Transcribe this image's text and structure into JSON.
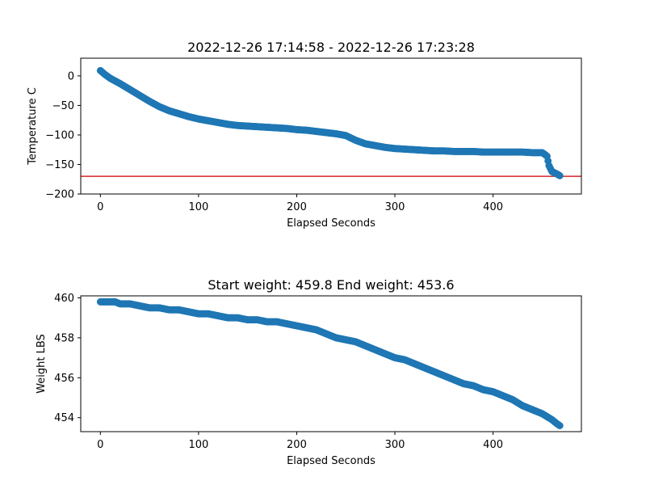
{
  "chart_data": [
    {
      "type": "scatter",
      "title": "2022-12-26 17:14:58 - 2022-12-26 17:23:28",
      "xlabel": "Elapsed Seconds",
      "ylabel": "Temperature C",
      "xlim": [
        -20,
        490
      ],
      "ylim": [
        -200,
        30
      ],
      "xticks": [
        0,
        100,
        200,
        300,
        400
      ],
      "xtick_labels": [
        "0",
        "100",
        "200",
        "300",
        "400"
      ],
      "yticks": [
        0,
        -50,
        -100,
        -150,
        -200
      ],
      "ytick_labels": [
        "0",
        "−50",
        "−100",
        "−150",
        "−200"
      ],
      "grid": false,
      "marker_color": "#1f77b4",
      "reference_line": {
        "y": -170,
        "color": "#d62728"
      },
      "series": [
        {
          "x": [
            0,
            5,
            10,
            20,
            30,
            40,
            50,
            60,
            70,
            80,
            90,
            100,
            110,
            120,
            130,
            140,
            150,
            160,
            170,
            180,
            190,
            200,
            210,
            220,
            230,
            240,
            250,
            260,
            270,
            280,
            290,
            300,
            310,
            320,
            330,
            340,
            350,
            360,
            370,
            380,
            390,
            400,
            410,
            420,
            430,
            440,
            450,
            452,
            455,
            457,
            460,
            465,
            468
          ],
          "y": [
            9,
            2,
            -4,
            -13,
            -23,
            -33,
            -43,
            -52,
            -59,
            -64,
            -69,
            -73,
            -76,
            -79,
            -82,
            -84,
            -85,
            -86,
            -87,
            -88,
            -89,
            -91,
            -92,
            -94,
            -96,
            -98,
            -101,
            -109,
            -115,
            -118,
            -121,
            -123,
            -124,
            -125,
            -126,
            -127,
            -127,
            -128,
            -128,
            -128,
            -129,
            -129,
            -129,
            -129,
            -129,
            -130,
            -130,
            -132,
            -136,
            -152,
            -162,
            -166,
            -169
          ]
        }
      ]
    },
    {
      "type": "scatter",
      "title": "Start weight: 459.8 End weight: 453.6",
      "xlabel": "Elapsed Seconds",
      "ylabel": "Weight LBS",
      "xlim": [
        -20,
        490
      ],
      "ylim": [
        453.3,
        460.1
      ],
      "xticks": [
        0,
        100,
        200,
        300,
        400
      ],
      "xtick_labels": [
        "0",
        "100",
        "200",
        "300",
        "400"
      ],
      "yticks": [
        454,
        456,
        458,
        460
      ],
      "ytick_labels": [
        "454",
        "456",
        "458",
        "460"
      ],
      "grid": false,
      "marker_color": "#1f77b4",
      "series": [
        {
          "x": [
            0,
            5,
            10,
            15,
            20,
            30,
            40,
            50,
            60,
            70,
            80,
            90,
            100,
            110,
            120,
            130,
            140,
            150,
            160,
            170,
            180,
            190,
            200,
            210,
            220,
            230,
            240,
            250,
            260,
            270,
            280,
            290,
            300,
            310,
            320,
            330,
            340,
            350,
            360,
            370,
            380,
            390,
            400,
            410,
            420,
            430,
            440,
            450,
            460,
            465,
            468
          ],
          "y": [
            459.8,
            459.8,
            459.8,
            459.8,
            459.7,
            459.7,
            459.6,
            459.5,
            459.5,
            459.4,
            459.4,
            459.3,
            459.2,
            459.2,
            459.1,
            459.0,
            459.0,
            458.9,
            458.9,
            458.8,
            458.8,
            458.7,
            458.6,
            458.5,
            458.4,
            458.2,
            458.0,
            457.9,
            457.8,
            457.6,
            457.4,
            457.2,
            457.0,
            456.9,
            456.7,
            456.5,
            456.3,
            456.1,
            455.9,
            455.7,
            455.6,
            455.4,
            455.3,
            455.1,
            454.9,
            454.6,
            454.4,
            454.2,
            453.9,
            453.7,
            453.6
          ]
        }
      ]
    }
  ]
}
